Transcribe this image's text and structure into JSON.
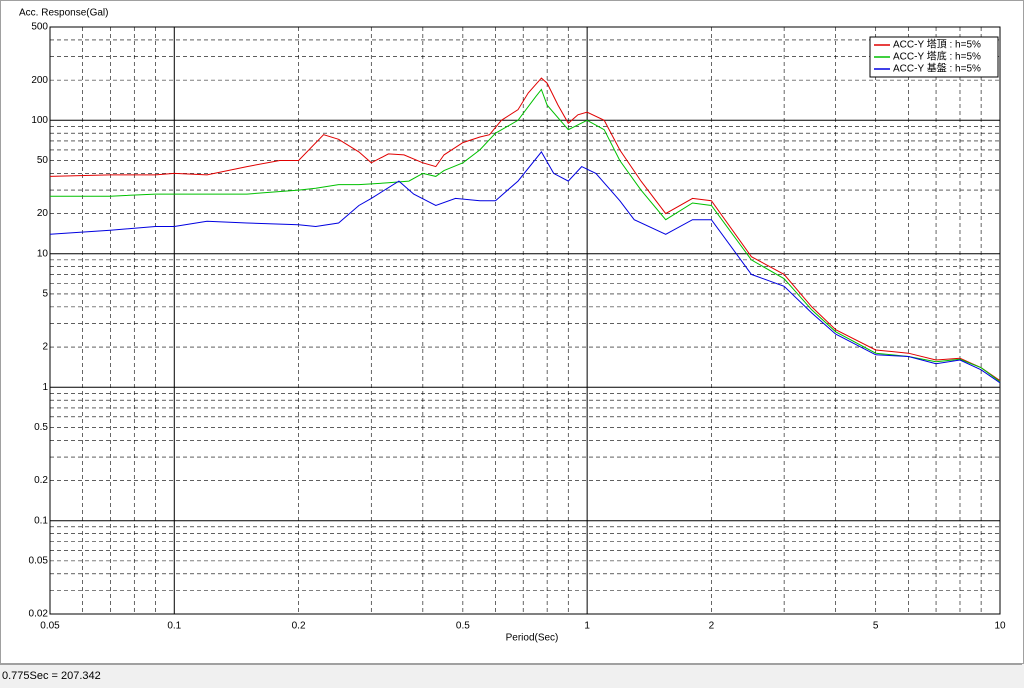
{
  "chart_data": {
    "type": "line",
    "title": "Acc. Response(Gal)",
    "x_label": "Period(Sec)",
    "xscale": "log",
    "yscale": "log",
    "grid": true,
    "minor_grid": true,
    "legend": "top-right",
    "xlim": [
      0.05,
      10
    ],
    "ylim": [
      0.02,
      500
    ],
    "xticks": [
      0.05,
      0.1,
      0.2,
      0.5,
      1,
      2,
      5,
      10
    ],
    "yticks": [
      500,
      200,
      100,
      50,
      20,
      10,
      5,
      2,
      1,
      0.5,
      0.2,
      0.1,
      0.05,
      0.02
    ],
    "series": [
      {
        "name": "ACC-Y 塔頂 : h=5%",
        "color": "#e00000",
        "x": [
          0.05,
          0.07,
          0.09,
          0.1,
          0.12,
          0.15,
          0.18,
          0.2,
          0.23,
          0.25,
          0.28,
          0.3,
          0.33,
          0.36,
          0.4,
          0.43,
          0.45,
          0.5,
          0.55,
          0.58,
          0.62,
          0.68,
          0.72,
          0.775,
          0.8,
          0.85,
          0.9,
          0.95,
          1,
          1.1,
          1.2,
          1.35,
          1.55,
          1.8,
          2,
          2.5,
          3,
          3.5,
          4,
          5,
          6,
          7,
          8,
          9,
          10
        ],
        "values": [
          38,
          39,
          39,
          40,
          39,
          45,
          50,
          50,
          78,
          72,
          58,
          48,
          56,
          55,
          48,
          45,
          55,
          68,
          75,
          78,
          100,
          120,
          160,
          207,
          190,
          130,
          95,
          110,
          115,
          100,
          60,
          35,
          20,
          26,
          25,
          9.5,
          7,
          4,
          2.7,
          1.9,
          1.8,
          1.6,
          1.65,
          1.4,
          1.12
        ]
      },
      {
        "name": "ACC-Y 塔底 : h=5%",
        "color": "#00c000",
        "x": [
          0.05,
          0.07,
          0.09,
          0.1,
          0.15,
          0.2,
          0.22,
          0.25,
          0.28,
          0.33,
          0.37,
          0.4,
          0.43,
          0.45,
          0.5,
          0.55,
          0.6,
          0.68,
          0.75,
          0.775,
          0.8,
          0.9,
          1,
          1.1,
          1.2,
          1.35,
          1.55,
          1.8,
          2,
          2.5,
          3,
          3.5,
          4,
          5,
          6,
          7,
          8,
          9,
          10
        ],
        "values": [
          27,
          27,
          28,
          28,
          28,
          30,
          31,
          33,
          33,
          34,
          35,
          40,
          38,
          42,
          48,
          60,
          80,
          100,
          150,
          170,
          130,
          85,
          100,
          85,
          50,
          30,
          18,
          24,
          23,
          9,
          6.5,
          3.8,
          2.6,
          1.8,
          1.7,
          1.55,
          1.62,
          1.4,
          1.1
        ]
      },
      {
        "name": "ACC-Y 基盤 : h=5%",
        "color": "#0000e0",
        "x": [
          0.05,
          0.07,
          0.09,
          0.1,
          0.12,
          0.15,
          0.2,
          0.22,
          0.25,
          0.28,
          0.3,
          0.35,
          0.38,
          0.43,
          0.48,
          0.55,
          0.6,
          0.68,
          0.775,
          0.83,
          0.9,
          0.97,
          1.05,
          1.2,
          1.3,
          1.55,
          1.8,
          2,
          2.5,
          3,
          3.5,
          4,
          5,
          6,
          7,
          8,
          9,
          10
        ],
        "values": [
          14,
          15,
          16,
          16,
          17.5,
          17,
          16.5,
          16,
          17,
          23,
          26,
          35,
          28,
          23,
          26,
          25,
          25,
          35,
          58,
          40,
          35,
          45,
          40,
          25,
          18,
          14,
          18,
          18,
          7,
          5.7,
          3.6,
          2.5,
          1.75,
          1.7,
          1.5,
          1.6,
          1.35,
          1.08
        ]
      }
    ]
  },
  "status_bar": {
    "text": "0.775Sec = 207.342"
  }
}
